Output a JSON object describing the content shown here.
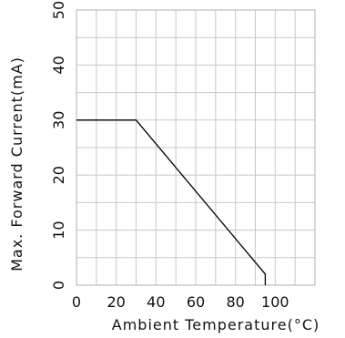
{
  "chart_data": {
    "type": "line",
    "title": "",
    "xlabel": "Ambient Temperature(°C)",
    "ylabel": "Max. Forward Current(mA)",
    "xlim": [
      0,
      120
    ],
    "ylim": [
      0,
      50
    ],
    "x_grid": [
      0,
      10,
      20,
      30,
      40,
      50,
      60,
      70,
      80,
      90,
      100,
      110,
      120
    ],
    "y_grid": [
      0,
      5,
      10,
      15,
      20,
      25,
      30,
      35,
      40,
      45,
      50
    ],
    "x_ticks": [
      {
        "value": 0,
        "label": "0"
      },
      {
        "value": 20,
        "label": "20"
      },
      {
        "value": 40,
        "label": "40"
      },
      {
        "value": 60,
        "label": "60"
      },
      {
        "value": 80,
        "label": "80"
      },
      {
        "value": 100,
        "label": "100"
      }
    ],
    "y_ticks": [
      {
        "value": 0,
        "label": "0"
      },
      {
        "value": 10,
        "label": "10"
      },
      {
        "value": 20,
        "label": "20"
      },
      {
        "value": 30,
        "label": "30"
      },
      {
        "value": 40,
        "label": "40"
      },
      {
        "value": 50,
        "label": "50"
      }
    ],
    "grid": true,
    "series": [
      {
        "x": [
          0,
          30,
          95,
          95
        ],
        "y": [
          30,
          30,
          2,
          0
        ],
        "color": "#000000"
      }
    ]
  }
}
